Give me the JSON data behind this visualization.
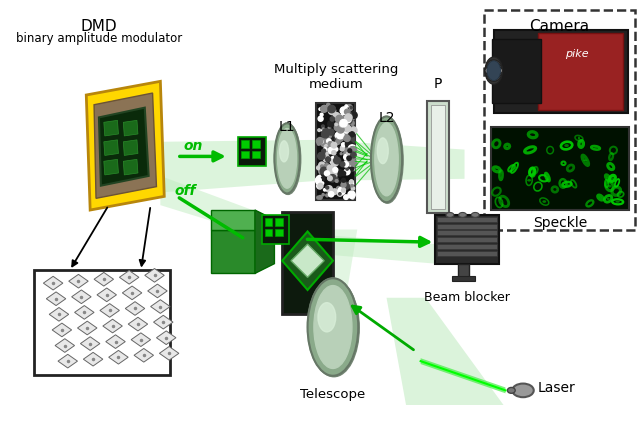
{
  "title": "",
  "background_color": "#ffffff",
  "labels": {
    "dmd_title": "DMD",
    "dmd_subtitle": "binary amplitude modulator",
    "medium_title": "Multiply scattering\nmedium",
    "l1": "L1",
    "l2": "L2",
    "p": "P",
    "camera": "Camera",
    "speckle": "Speckle",
    "beam_blocker": "Beam blocker",
    "telescope": "Telescope",
    "laser": "Laser",
    "on": "on",
    "off": "off"
  },
  "colors": {
    "green_beam": "#00cc00",
    "green_beam_light": "#c8f0c8",
    "green_beam_mid": "#a0e0a0",
    "green_arrow": "#00bb00",
    "dmd_yellow": "#FFD700",
    "dmd_border": "#B8860B",
    "lens_gray": "#b8c8b8",
    "lens_edge": "#889988",
    "scatter_bg": "#888888",
    "dashed_box": "#333333",
    "dark_bg": "#0a1a0a",
    "dark_green_bg": "#0d2b0d",
    "mid_green": "#1a5a1a",
    "bright_green": "#00cc00"
  },
  "figsize": [
    6.4,
    4.22
  ],
  "dpi": 100
}
